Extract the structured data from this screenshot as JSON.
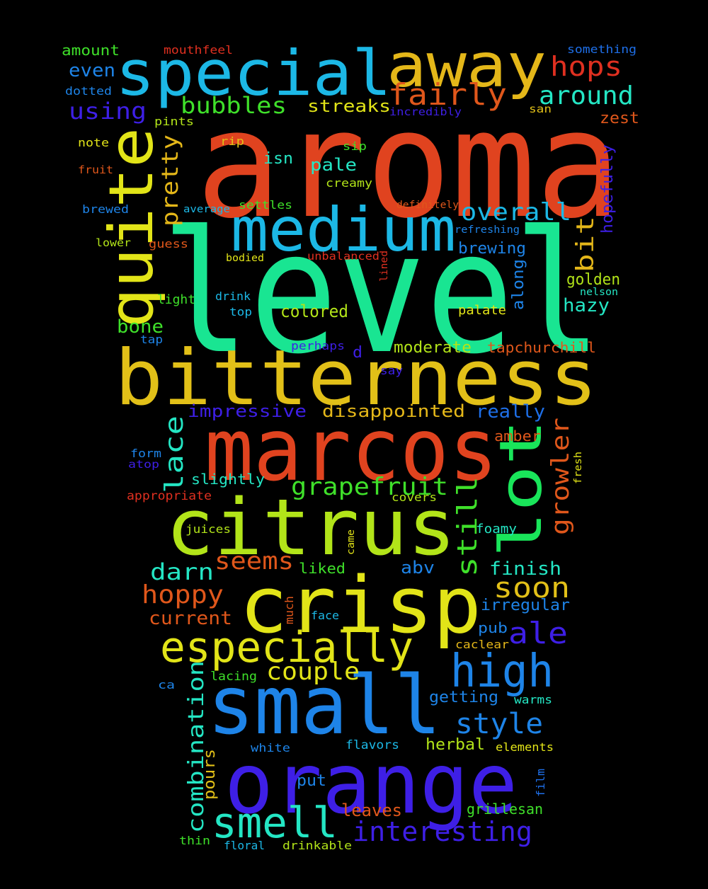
{
  "words": [
    {
      "id": "aroma",
      "text": "aroma",
      "color": "#e0431f"
    },
    {
      "id": "level",
      "text": "level",
      "color": "#19e592"
    },
    {
      "id": "bitterness",
      "text": "bitterness",
      "color": "#e2c018"
    },
    {
      "id": "marcos",
      "text": "marcos",
      "color": "#e0431f"
    },
    {
      "id": "citrus",
      "text": "citrus",
      "color": "#b2e419"
    },
    {
      "id": "crisp",
      "text": "crisp",
      "color": "#e2e418"
    },
    {
      "id": "small",
      "text": "small",
      "color": "#1e84e8"
    },
    {
      "id": "orange",
      "text": "orange",
      "color": "#3e1fe6"
    },
    {
      "id": "special",
      "text": "special",
      "color": "#1cb8e6"
    },
    {
      "id": "away",
      "text": "away",
      "color": "#e4b719"
    },
    {
      "id": "medium",
      "text": "medium",
      "color": "#1cb8e6"
    },
    {
      "id": "quite",
      "text": "quite",
      "color": "#e2e418"
    },
    {
      "id": "lot",
      "text": "lot",
      "color": "#19e55a"
    },
    {
      "id": "especially",
      "text": "especially",
      "color": "#e2e418"
    },
    {
      "id": "high",
      "text": "high",
      "color": "#1e84e8"
    },
    {
      "id": "smell",
      "text": "smell",
      "color": "#24e6c4"
    },
    {
      "id": "fairly",
      "text": "fairly",
      "color": "#e0571b"
    },
    {
      "id": "hops",
      "text": "hops",
      "color": "#e03020"
    },
    {
      "id": "around",
      "text": "around",
      "color": "#24e6c4"
    },
    {
      "id": "bubbles",
      "text": "bubbles",
      "color": "#3fe02a"
    },
    {
      "id": "using",
      "text": "using",
      "color": "#3e1fe6"
    },
    {
      "id": "even",
      "text": "even",
      "color": "#1e84e8"
    },
    {
      "id": "amount",
      "text": "amount",
      "color": "#3fe02a"
    },
    {
      "id": "mouthfeel",
      "text": "mouthfeel",
      "color": "#e03020"
    },
    {
      "id": "something",
      "text": "something",
      "color": "#1e6fe8"
    },
    {
      "id": "dotted",
      "text": "dotted",
      "color": "#1e84e8"
    },
    {
      "id": "streaks",
      "text": "streaks",
      "color": "#e2e418"
    },
    {
      "id": "incredibly",
      "text": "incredibly",
      "color": "#3e1fe6"
    },
    {
      "id": "san",
      "text": "san",
      "color": "#e2c018"
    },
    {
      "id": "zest",
      "text": "zest",
      "color": "#e0571b"
    },
    {
      "id": "pints",
      "text": "pints",
      "color": "#b2e419"
    },
    {
      "id": "note",
      "text": "note",
      "color": "#e2e418"
    },
    {
      "id": "rip",
      "text": "rip",
      "color": "#e2c018"
    },
    {
      "id": "sip",
      "text": "sip",
      "color": "#3fe02a"
    },
    {
      "id": "isn",
      "text": "isn",
      "color": "#24e6c4"
    },
    {
      "id": "pale",
      "text": "pale",
      "color": "#24e6c4"
    },
    {
      "id": "pretty",
      "text": "pretty",
      "color": "#e4b719"
    },
    {
      "id": "fruit",
      "text": "fruit",
      "color": "#e0571b"
    },
    {
      "id": "creamy",
      "text": "creamy",
      "color": "#b2e419"
    },
    {
      "id": "hopefully",
      "text": "hopefully",
      "color": "#3e1fe6"
    },
    {
      "id": "overall",
      "text": "overall",
      "color": "#1cb8e6"
    },
    {
      "id": "bit",
      "text": "bit",
      "color": "#e4b719"
    },
    {
      "id": "brewed",
      "text": "brewed",
      "color": "#1e84e8"
    },
    {
      "id": "average",
      "text": "average",
      "color": "#1cb8e6"
    },
    {
      "id": "settles",
      "text": "settles",
      "color": "#3fe02a"
    },
    {
      "id": "definitely",
      "text": "definitely",
      "color": "#e0571b"
    },
    {
      "id": "refreshing",
      "text": "refreshing",
      "color": "#1e84e8"
    },
    {
      "id": "lower",
      "text": "lower",
      "color": "#b2e419"
    },
    {
      "id": "guess",
      "text": "guess",
      "color": "#e0571b"
    },
    {
      "id": "brewing",
      "text": "brewing",
      "color": "#1e84e8"
    },
    {
      "id": "bodied",
      "text": "bodied",
      "color": "#e2e418"
    },
    {
      "id": "unbalanced",
      "text": "unbalanced",
      "color": "#e03020"
    },
    {
      "id": "lined",
      "text": "lined",
      "color": "#e03020"
    },
    {
      "id": "along",
      "text": "along",
      "color": "#1e84e8"
    },
    {
      "id": "golden",
      "text": "golden",
      "color": "#b2e419"
    },
    {
      "id": "nelson",
      "text": "nelson",
      "color": "#24e6c4"
    },
    {
      "id": "light",
      "text": "light",
      "color": "#3fe02a"
    },
    {
      "id": "drink",
      "text": "drink",
      "color": "#1cb8e6"
    },
    {
      "id": "hazy",
      "text": "hazy",
      "color": "#24e6c4"
    },
    {
      "id": "top",
      "text": "top",
      "color": "#1cb8e6"
    },
    {
      "id": "colored",
      "text": "colored",
      "color": "#b2e419"
    },
    {
      "id": "palate",
      "text": "palate",
      "color": "#e2e418"
    },
    {
      "id": "bone",
      "text": "bone",
      "color": "#3fe02a"
    },
    {
      "id": "tap",
      "text": "tap",
      "color": "#1e84e8"
    },
    {
      "id": "perhaps",
      "text": "perhaps",
      "color": "#3e1fe6"
    },
    {
      "id": "d",
      "text": "d",
      "color": "#3e1fe6"
    },
    {
      "id": "moderate",
      "text": "moderate",
      "color": "#b2e419"
    },
    {
      "id": "tapchurchill",
      "text": "tapchurchill",
      "color": "#e0571b"
    },
    {
      "id": "say",
      "text": "say",
      "color": "#3e1fe6"
    },
    {
      "id": "impressive",
      "text": "impressive",
      "color": "#3e1fe6"
    },
    {
      "id": "disappointed",
      "text": "disappointed",
      "color": "#e4b719"
    },
    {
      "id": "really",
      "text": "really",
      "color": "#1e6fe8"
    },
    {
      "id": "lace",
      "text": "lace",
      "color": "#24e6c4"
    },
    {
      "id": "growler",
      "text": "growler",
      "color": "#e0571b"
    },
    {
      "id": "amber",
      "text": "amber",
      "color": "#e0571b"
    },
    {
      "id": "form",
      "text": "form",
      "color": "#1e84e8"
    },
    {
      "id": "atop",
      "text": "atop",
      "color": "#3e1fe6"
    },
    {
      "id": "fresh",
      "text": "fresh",
      "color": "#e2e418"
    },
    {
      "id": "slightly",
      "text": "slightly",
      "color": "#24e6c4"
    },
    {
      "id": "grapefruit",
      "text": "grapefruit",
      "color": "#3fe02a"
    },
    {
      "id": "appropriate",
      "text": "appropriate",
      "color": "#e03020"
    },
    {
      "id": "covers",
      "text": "covers",
      "color": "#b2e419"
    },
    {
      "id": "still",
      "text": "still",
      "color": "#3fe02a"
    },
    {
      "id": "juices",
      "text": "juices",
      "color": "#b2e419"
    },
    {
      "id": "came",
      "text": "came",
      "color": "#e2e418"
    },
    {
      "id": "foamy",
      "text": "foamy",
      "color": "#24e6c4"
    },
    {
      "id": "darn",
      "text": "darn",
      "color": "#24e6c4"
    },
    {
      "id": "seems",
      "text": "seems",
      "color": "#e0571b"
    },
    {
      "id": "liked",
      "text": "liked",
      "color": "#3fe02a"
    },
    {
      "id": "abv",
      "text": "abv",
      "color": "#1e84e8"
    },
    {
      "id": "finish",
      "text": "finish",
      "color": "#24e6c4"
    },
    {
      "id": "hoppy",
      "text": "hoppy",
      "color": "#e0571b"
    },
    {
      "id": "soon",
      "text": "soon",
      "color": "#e2c018"
    },
    {
      "id": "irregular",
      "text": "irregular",
      "color": "#1e84e8"
    },
    {
      "id": "current",
      "text": "current",
      "color": "#e0571b"
    },
    {
      "id": "much",
      "text": "much",
      "color": "#e0571b"
    },
    {
      "id": "face",
      "text": "face",
      "color": "#1cb8e6"
    },
    {
      "id": "ale",
      "text": "ale",
      "color": "#3e1fe6"
    },
    {
      "id": "pub",
      "text": "pub",
      "color": "#1e84e8"
    },
    {
      "id": "caclear",
      "text": "caclear",
      "color": "#e4b719"
    },
    {
      "id": "combination",
      "text": "combination",
      "color": "#24e6c4"
    },
    {
      "id": "couple",
      "text": "couple",
      "color": "#e2e418"
    },
    {
      "id": "ca",
      "text": "ca",
      "color": "#1e84e8"
    },
    {
      "id": "lacing",
      "text": "lacing",
      "color": "#3fe02a"
    },
    {
      "id": "getting",
      "text": "getting",
      "color": "#1e84e8"
    },
    {
      "id": "warms",
      "text": "warms",
      "color": "#24e6c4"
    },
    {
      "id": "style",
      "text": "style",
      "color": "#1e84e8"
    },
    {
      "id": "pours",
      "text": "pours",
      "color": "#e2c018"
    },
    {
      "id": "white",
      "text": "white",
      "color": "#1e84e8"
    },
    {
      "id": "flavors",
      "text": "flavors",
      "color": "#1cb8e6"
    },
    {
      "id": "herbal",
      "text": "herbal",
      "color": "#b2e419"
    },
    {
      "id": "elements",
      "text": "elements",
      "color": "#e2e418"
    },
    {
      "id": "film",
      "text": "film",
      "color": "#1e6fe8"
    },
    {
      "id": "put",
      "text": "put",
      "color": "#1e84e8"
    },
    {
      "id": "leaves",
      "text": "leaves",
      "color": "#e0571b"
    },
    {
      "id": "grillesan",
      "text": "grillesan",
      "color": "#3fe02a"
    },
    {
      "id": "interesting",
      "text": "interesting",
      "color": "#3e1fe6"
    },
    {
      "id": "thin",
      "text": "thin",
      "color": "#3fe02a"
    },
    {
      "id": "floral",
      "text": "floral",
      "color": "#1cb8e6"
    },
    {
      "id": "drinkable",
      "text": "drinkable",
      "color": "#b2e419"
    }
  ]
}
